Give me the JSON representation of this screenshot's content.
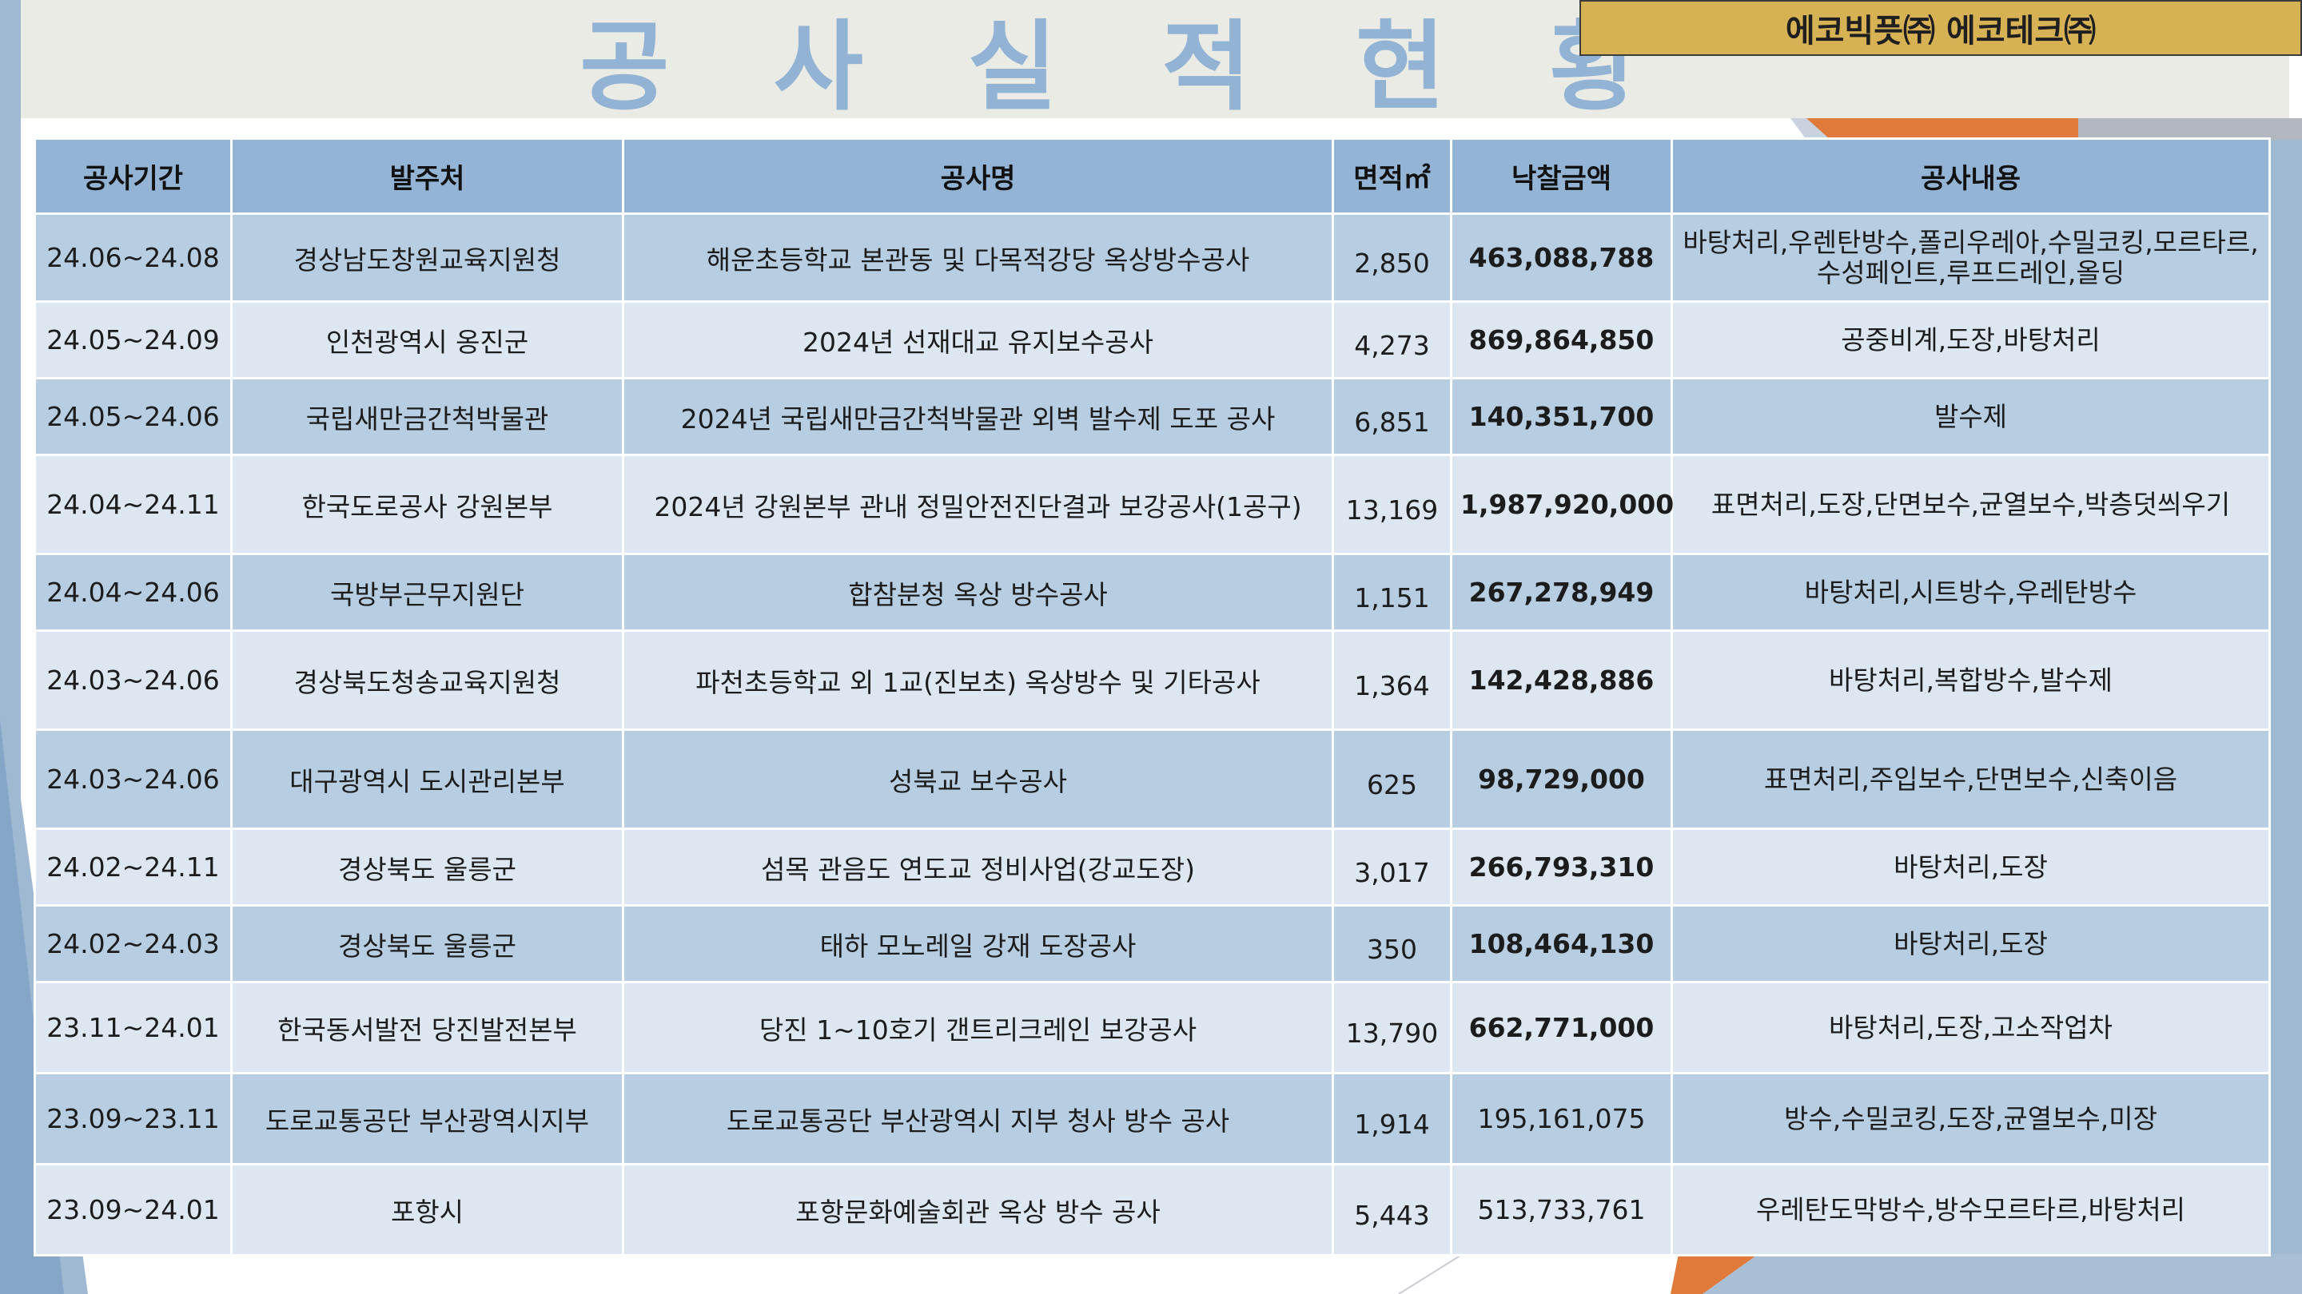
{
  "page": {
    "title": "공 사 실 적 현 황",
    "company": "에코빅픗㈜ 에코테크㈜"
  },
  "colors": {
    "title": "#92b3d4",
    "header_band": "#ebebe5",
    "badge": "#d7b254",
    "table_header": "#93b4d4",
    "row_dark": "#b7cde1",
    "row_light": "#dde7f1",
    "accent_orange": "#e07a3a"
  },
  "table": {
    "headers": {
      "period": "공사기간",
      "client": "발주처",
      "name": "공사명",
      "area": "면적㎡",
      "amount": "낙찰금액",
      "content": "공사내용"
    },
    "rows": [
      {
        "period": "24.06~24.08",
        "client": "경상남도창원교육지원청",
        "name": "해운초등학교 본관동 및 다목적강당 옥상방수공사",
        "area": "2,850",
        "amount": "463,088,788",
        "amount_bold": true,
        "content": "바탕처리,우렌탄방수,폴리우레아,수밀코킹,모르타르,수성페인트,루프드레인,올딩"
      },
      {
        "period": "24.05~24.09",
        "client": "인천광역시 옹진군",
        "name": "2024년 선재대교 유지보수공사",
        "area": "4,273",
        "amount": "869,864,850",
        "amount_bold": true,
        "content": "공중비계,도장,바탕처리"
      },
      {
        "period": "24.05~24.06",
        "client": "국립새만금간척박물관",
        "name": "2024년 국립새만금간척박물관 외벽 발수제 도포 공사",
        "area": "6,851",
        "amount": "140,351,700",
        "amount_bold": true,
        "content": "발수제"
      },
      {
        "period": "24.04~24.11",
        "client": "한국도로공사 강원본부",
        "name": "2024년 강원본부 관내 정밀안전진단결과 보강공사(1공구)",
        "area": "13,169",
        "amount": "1,987,920,000",
        "amount_bold": true,
        "content": "표면처리,도장,단면보수,균열보수,박층덧씌우기"
      },
      {
        "period": "24.04~24.06",
        "client": "국방부근무지원단",
        "name": "합참분청 옥상 방수공사",
        "area": "1,151",
        "amount": "267,278,949",
        "amount_bold": true,
        "content": "바탕처리,시트방수,우레탄방수"
      },
      {
        "period": "24.03~24.06",
        "client": "경상북도청송교육지원청",
        "name": "파천초등학교 외 1교(진보초) 옥상방수 및 기타공사",
        "area": "1,364",
        "amount": "142,428,886",
        "amount_bold": true,
        "content": "바탕처리,복합방수,발수제"
      },
      {
        "period": "24.03~24.06",
        "client": "대구광역시 도시관리본부",
        "name": "성북교 보수공사",
        "area": "625",
        "amount": "98,729,000",
        "amount_bold": true,
        "content": "표면처리,주입보수,단면보수,신축이음"
      },
      {
        "period": "24.02~24.11",
        "client": "경상북도 울릉군",
        "name": "섬목 관음도 연도교 정비사업(강교도장)",
        "area": "3,017",
        "amount": "266,793,310",
        "amount_bold": true,
        "content": "바탕처리,도장"
      },
      {
        "period": "24.02~24.03",
        "client": "경상북도 울릉군",
        "name": "태하 모노레일 강재 도장공사",
        "area": "350",
        "amount": "108,464,130",
        "amount_bold": true,
        "content": "바탕처리,도장"
      },
      {
        "period": "23.11~24.01",
        "client": "한국동서발전 당진발전본부",
        "name": "당진 1~10호기 갠트리크레인 보강공사",
        "area": "13,790",
        "amount": "662,771,000",
        "amount_bold": true,
        "content": "바탕처리,도장,고소작업차"
      },
      {
        "period": "23.09~23.11",
        "client": "도로교통공단 부산광역시지부",
        "name": "도로교통공단 부산광역시 지부 청사 방수 공사",
        "area": "1,914",
        "amount": "195,161,075",
        "amount_bold": false,
        "content": "방수,수밀코킹,도장,균열보수,미장"
      },
      {
        "period": "23.09~24.01",
        "client": "포항시",
        "name": "포항문화예술회관 옥상 방수 공사",
        "area": "5,443",
        "amount": "513,733,761",
        "amount_bold": false,
        "content": "우레탄도막방수,방수모르타르,바탕처리"
      }
    ]
  }
}
